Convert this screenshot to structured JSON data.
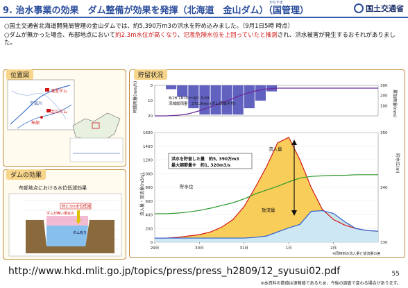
{
  "header": {
    "title": "9. 治水事業の効果　ダム整備が効果を発揮（北海道　金山ダム）（国管理）",
    "ruby": "かなやま",
    "logo_text": "国土交通省"
  },
  "bullets": [
    {
      "text": "○国土交通省北海道開発局管理の金山ダムでは、約5,390万m3の洪水を貯め込みました。（9月1日5時 時点）"
    },
    {
      "prefix": "○ダムが無かった場合、布部地点において",
      "red1": "約2.3m水位が高くなり",
      "mid": "、",
      "red2": "氾濫危険水位を上回っていたと推測",
      "suffix": "され、洪水被害が発生するおそれがありました。"
    }
  ],
  "map_panel": {
    "heading": "位置図",
    "labels": [
      "滝里ダム",
      "空知川",
      "金山ダム",
      "布部"
    ]
  },
  "dam_panel": {
    "heading": "ダムの効果",
    "subtitle": "布部地点における水位低減効果",
    "labels": [
      "約2.3m水位低減",
      "ダムが無い場合の",
      "ダム有り"
    ]
  },
  "chart_panel": {
    "heading": "貯留状況",
    "rain_annotation": [
      "8/28 18:00～9/1 3:00",
      "流域総雨量　272.9mm(ダム流域平均)"
    ],
    "storage_annotation": [
      "洪水を貯留した量　約5, 390万m3",
      "最大調節量※　約1, 320m3/s"
    ],
    "labels": {
      "inflow": "流入量",
      "outflow": "放流量",
      "reservoir": "貯水位",
      "note": "※同時刻の流入量と放流量の差"
    },
    "axes": {
      "rain_left": "時間雨量(mm/h)",
      "rain_right": "累加雨量(mm)",
      "flow_left": "流入量・放流量(m3/s)",
      "flow_right": "貯水位(m)"
    },
    "rain_left_ticks": [
      "0",
      "10",
      "20"
    ],
    "rain_right_ticks": [
      "100",
      "200",
      "300"
    ],
    "flow_left_ticks": [
      "0",
      "200",
      "400",
      "600",
      "800",
      "1000",
      "1200",
      "1400",
      "1600"
    ],
    "flow_right_ticks": [
      "330",
      "340",
      "350"
    ],
    "x_ticks": [
      "29日",
      "30日",
      "31日",
      "1日",
      "2日"
    ]
  },
  "chart_data": {
    "type": "line",
    "x": [
      0,
      6,
      12,
      18,
      24,
      30,
      36,
      42,
      48,
      54,
      60,
      66,
      72,
      78,
      84,
      90,
      96,
      102,
      108,
      114,
      120
    ],
    "series": [
      {
        "name": "流入量",
        "values": [
          60,
          60,
          70,
          90,
          110,
          150,
          220,
          330,
          520,
          800,
          1100,
          1450,
          1530,
          1200,
          800,
          480,
          330,
          250,
          200,
          170,
          160
        ]
      },
      {
        "name": "放流量",
        "values": [
          60,
          60,
          60,
          60,
          60,
          60,
          60,
          60,
          60,
          70,
          90,
          150,
          210,
          260,
          450,
          460,
          420,
          300,
          200,
          170,
          160
        ]
      },
      {
        "name": "貯水位",
        "values": [
          335.2,
          335.2,
          335.3,
          335.5,
          335.8,
          336.2,
          336.7,
          337.2,
          337.9,
          338.8,
          339.5,
          340.2,
          341.0,
          341.7,
          342.0,
          342.1,
          342.2,
          342.2,
          342.3,
          342.3,
          342.3
        ]
      },
      {
        "name": "累加雨量",
        "values": [
          0,
          0,
          5,
          20,
          50,
          90,
          130,
          170,
          215,
          245,
          265,
          272.9,
          272.9,
          272.9,
          272.9,
          272.9,
          272.9,
          272.9,
          272.9,
          272.9,
          272.9
        ]
      }
    ],
    "ylim": [
      0,
      1600
    ],
    "y2lim": [
      330,
      350
    ],
    "grid": true
  },
  "source": {
    "url": "http://www.hkd.mlit.go.jp/topics/press/press_h2809/12_syusui02.pdf",
    "page_number": "55",
    "footnote": "※本資料の数値は速報値であるため、今後の調査で変わる場合があります。"
  }
}
